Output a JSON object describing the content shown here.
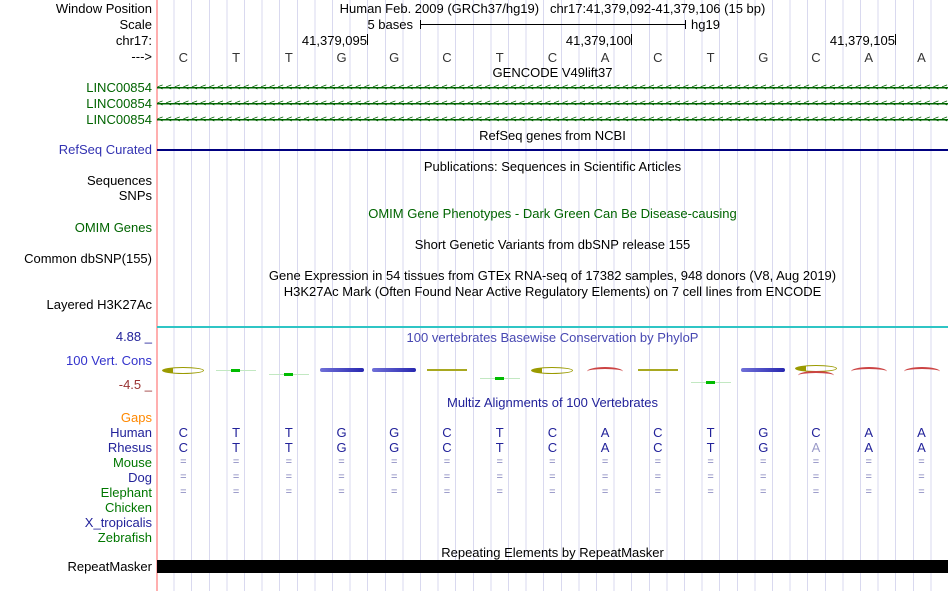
{
  "header": {
    "assembly_label": "Human Feb. 2009 (GRCh37/hg19)",
    "position_label": "chr17:41,379,092-41,379,106 (15 bp)"
  },
  "left_column": {
    "window_position": "Window Position",
    "scale": "Scale",
    "chrom": "chr17:",
    "strand": "--->",
    "refseq_curated": "RefSeq Curated",
    "sequences": "Sequences",
    "snps": "SNPs",
    "omim_genes": "OMIM Genes",
    "common_dbsnp": "Common dbSNP(155)",
    "layered_h3k27ac": "Layered H3K27Ac",
    "cons_max": "4.88 _",
    "cons_label": "100 Vert. Cons",
    "cons_min": "-4.5 _",
    "repeatmasker": "RepeatMasker"
  },
  "scale_bar": {
    "value": "5 bases",
    "assembly": "hg19"
  },
  "ruler": {
    "ticks": [
      "41,379,095",
      "41,379,100",
      "41,379,105"
    ]
  },
  "sequence": {
    "bases": [
      "C",
      "T",
      "T",
      "G",
      "G",
      "C",
      "T",
      "C",
      "A",
      "C",
      "T",
      "G",
      "C",
      "A",
      "A"
    ]
  },
  "tracks": {
    "gencode": {
      "title": "GENCODE V49lift37",
      "items": [
        {
          "label": "LINC00854",
          "direction": "left"
        },
        {
          "label": "LINC00854",
          "direction": "left"
        },
        {
          "label": "LINC00854",
          "direction": "left"
        }
      ],
      "arrow_char": "<"
    },
    "refseq": {
      "title": "RefSeq genes from NCBI"
    },
    "publications": {
      "title": "Publications: Sequences in Scientific Articles"
    },
    "omim": {
      "title": "OMIM Gene Phenotypes - Dark Green Can Be Disease-causing"
    },
    "dbsnp": {
      "title": "Short Genetic Variants from dbSNP release 155"
    },
    "gtex": {
      "title": "Gene Expression in 54 tissues from GTEx RNA-seq of 17382 samples, 948 donors (V8, Aug 2019)"
    },
    "h3k27ac": {
      "title": "H3K27Ac Mark (Often Found Near Active Regulatory Elements) on 7 cell lines from ENCODE"
    },
    "conservation": {
      "title": "100 vertebrates Basewise Conservation by PhyloP",
      "marks": [
        "olive-ellipse",
        "green-dash",
        "green-dash",
        "blue-bar",
        "blue-bar",
        "olive-line",
        "green-dash",
        "olive-ellipse",
        "red-arc",
        "olive-line",
        "green-dash",
        "blue-bar",
        "olive-ellipse-red",
        "red-arc",
        "red-arc"
      ]
    },
    "multiz": {
      "title": "Multiz Alignments of 100 Vertebrates",
      "species": [
        {
          "name": "Gaps",
          "color": "#ff8800",
          "cells": []
        },
        {
          "name": "Human",
          "color": "#22229a",
          "cells": [
            "C",
            "T",
            "T",
            "G",
            "G",
            "C",
            "T",
            "C",
            "A",
            "C",
            "T",
            "G",
            "C",
            "A",
            "A"
          ],
          "muted": []
        },
        {
          "name": "Rhesus",
          "color": "#22229a",
          "cells": [
            "C",
            "T",
            "T",
            "G",
            "G",
            "C",
            "T",
            "C",
            "A",
            "C",
            "T",
            "G",
            "A",
            "A",
            "A"
          ],
          "muted": [
            12
          ]
        },
        {
          "name": "Mouse",
          "color": "#007700",
          "cells": [
            "=",
            "=",
            "=",
            "=",
            "=",
            "=",
            "=",
            "=",
            "=",
            "=",
            "=",
            "=",
            "=",
            "=",
            "="
          ]
        },
        {
          "name": "Dog",
          "color": "#22229a",
          "cells": [
            "=",
            "=",
            "=",
            "=",
            "=",
            "=",
            "=",
            "=",
            "=",
            "=",
            "=",
            "=",
            "=",
            "=",
            "="
          ]
        },
        {
          "name": "Elephant",
          "color": "#007700",
          "cells": [
            "=",
            "=",
            "=",
            "=",
            "=",
            "=",
            "=",
            "=",
            "=",
            "=",
            "=",
            "=",
            "=",
            "=",
            "="
          ]
        },
        {
          "name": "Chicken",
          "color": "#007700",
          "cells": []
        },
        {
          "name": "X_tropicalis",
          "color": "#22229a",
          "cells": []
        },
        {
          "name": "Zebrafish",
          "color": "#007700",
          "cells": []
        }
      ]
    },
    "repeatmasker": {
      "title": "Repeating Elements by RepeatMasker"
    }
  },
  "colors": {
    "gene_green": "#006400",
    "refseq_blue": "#3333b2",
    "refseq_line": "#000080",
    "omim_green": "#006400",
    "title_black": "#000000",
    "phylop_title_blue": "#4747b2",
    "cons_max_navy": "#22229a",
    "cons_label_blue": "#3333cc",
    "cons_min_maroon": "#993333",
    "cons_olive": "#9a9a00",
    "cons_green": "#00bb00",
    "cons_blue": "#4848c8",
    "cons_red": "#cc4444",
    "multiz_navy": "#22229a",
    "muted_letter": "#9a9ac8",
    "eq_gray_blue": "#8080bb",
    "cyan_line": "#2fc5c5",
    "grid": "#d9d9ef",
    "pink_guide": "#ffafaf",
    "base_letter": "#333333"
  }
}
